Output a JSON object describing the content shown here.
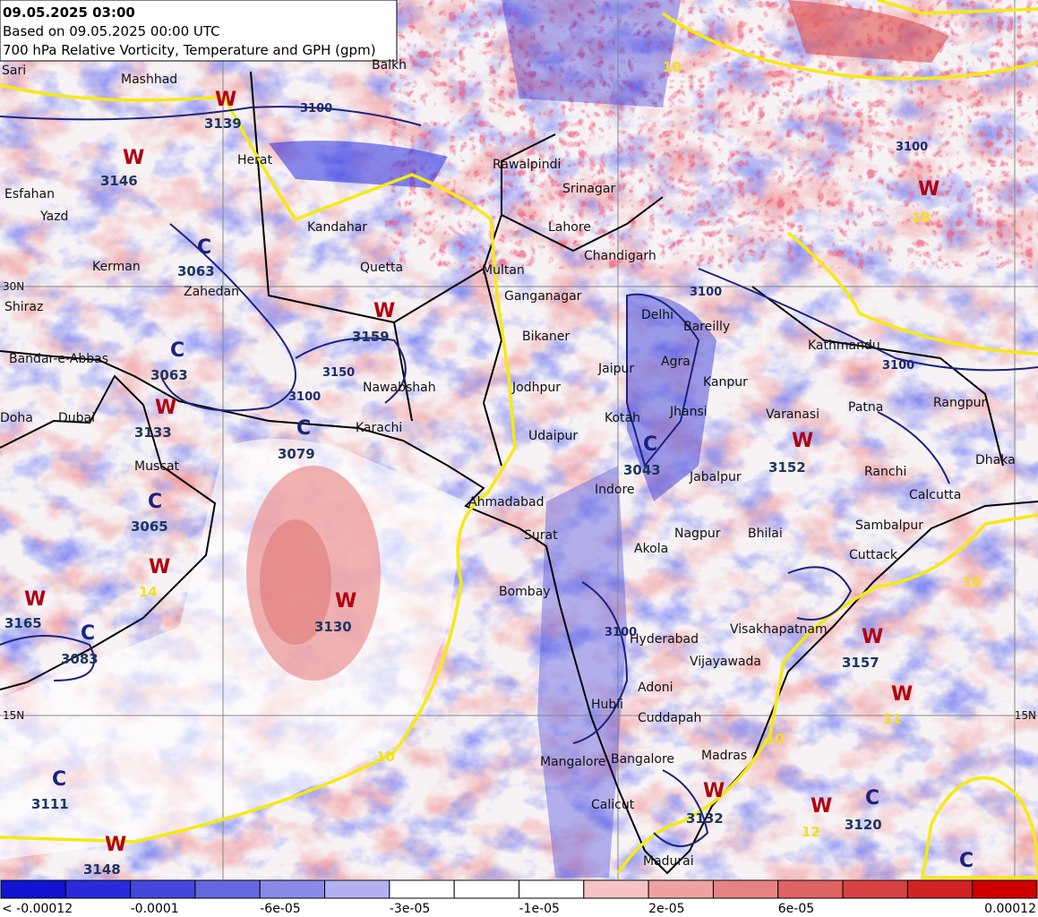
{
  "header": {
    "title": "09.05.2025 03:00",
    "based_on": "Based on 09.05.2025 00:00 UTC",
    "subtitle": "700 hPa Relative Vorticity, Temperature and GPH (gpm)"
  },
  "places": [
    "Sari",
    "Mashhad",
    "Balkh",
    "Herat",
    "Esfahan",
    "Yazd",
    "Kerman",
    "Zahedan",
    "Kandahar",
    "Quetta",
    "Shiraz",
    "Bandar-e-Abbas",
    "Doha",
    "Dubai",
    "Muscat",
    "Nawabshah",
    "Karachi",
    "Multan",
    "Lahore",
    "Srinagar",
    "Rawalpindi",
    "Chandigarh",
    "Ganganagar",
    "Delhi",
    "Bareilly",
    "Bikaner",
    "Jaipur",
    "Agra",
    "Kanpur",
    "Jodhpur",
    "Kotah",
    "Jhansi",
    "Udaipur",
    "Varanasi",
    "Patna",
    "Kathmandu",
    "Rangpur",
    "Dhaka",
    "Ahmadabad",
    "Surat",
    "Indore",
    "Jabalpur",
    "Ranchi",
    "Calcutta",
    "Bhilai",
    "Nagpur",
    "Akola",
    "Sambalpur",
    "Cuttack",
    "Bombay",
    "Hyderabad",
    "Visakhapatnam",
    "Vijayawada",
    "Adoni",
    "Hubli",
    "Cuddapah",
    "Mangalore",
    "Bangalore",
    "Madras",
    "Calicut",
    "Madurai"
  ],
  "systems": [
    {
      "type": "W",
      "gph": 3139
    },
    {
      "type": "W",
      "gph": 3146
    },
    {
      "type": "C",
      "gph": 3063
    },
    {
      "type": "C",
      "gph": 3063
    },
    {
      "type": "W",
      "gph": 3159
    },
    {
      "type": "W",
      "gph": 3133
    },
    {
      "type": "C",
      "gph": 3079
    },
    {
      "type": "C",
      "gph": 3065
    },
    {
      "type": "W",
      "temp": 14
    },
    {
      "type": "W",
      "gph": 3165
    },
    {
      "type": "C",
      "gph": 3083
    },
    {
      "type": "W",
      "gph": 3130
    },
    {
      "type": "W",
      "gph": 3152
    },
    {
      "type": "C",
      "gph": 3043
    },
    {
      "type": "W",
      "gph": 3157
    },
    {
      "type": "W",
      "temp": 11
    },
    {
      "type": "C",
      "gph": 3111
    },
    {
      "type": "W",
      "gph": 3148
    },
    {
      "type": "W",
      "gph": 3132
    },
    {
      "type": "W",
      "temp": 12
    },
    {
      "type": "C",
      "gph": 3120
    },
    {
      "type": "C"
    },
    {
      "type": "W",
      "temp": 18
    }
  ],
  "contour_labels": [
    "3100",
    "3150",
    "3100",
    "3100",
    "3100",
    "3100",
    "3100",
    "10",
    "10",
    "10",
    "10"
  ],
  "grid_labels": [
    "30N",
    "15N",
    "15N"
  ],
  "colorbar": {
    "labels": [
      "< -0.00012",
      "-0.0001",
      "-6e-05",
      "-3e-05",
      "-1e-05",
      "2e-05",
      "6e-05",
      "0.00012"
    ]
  }
}
